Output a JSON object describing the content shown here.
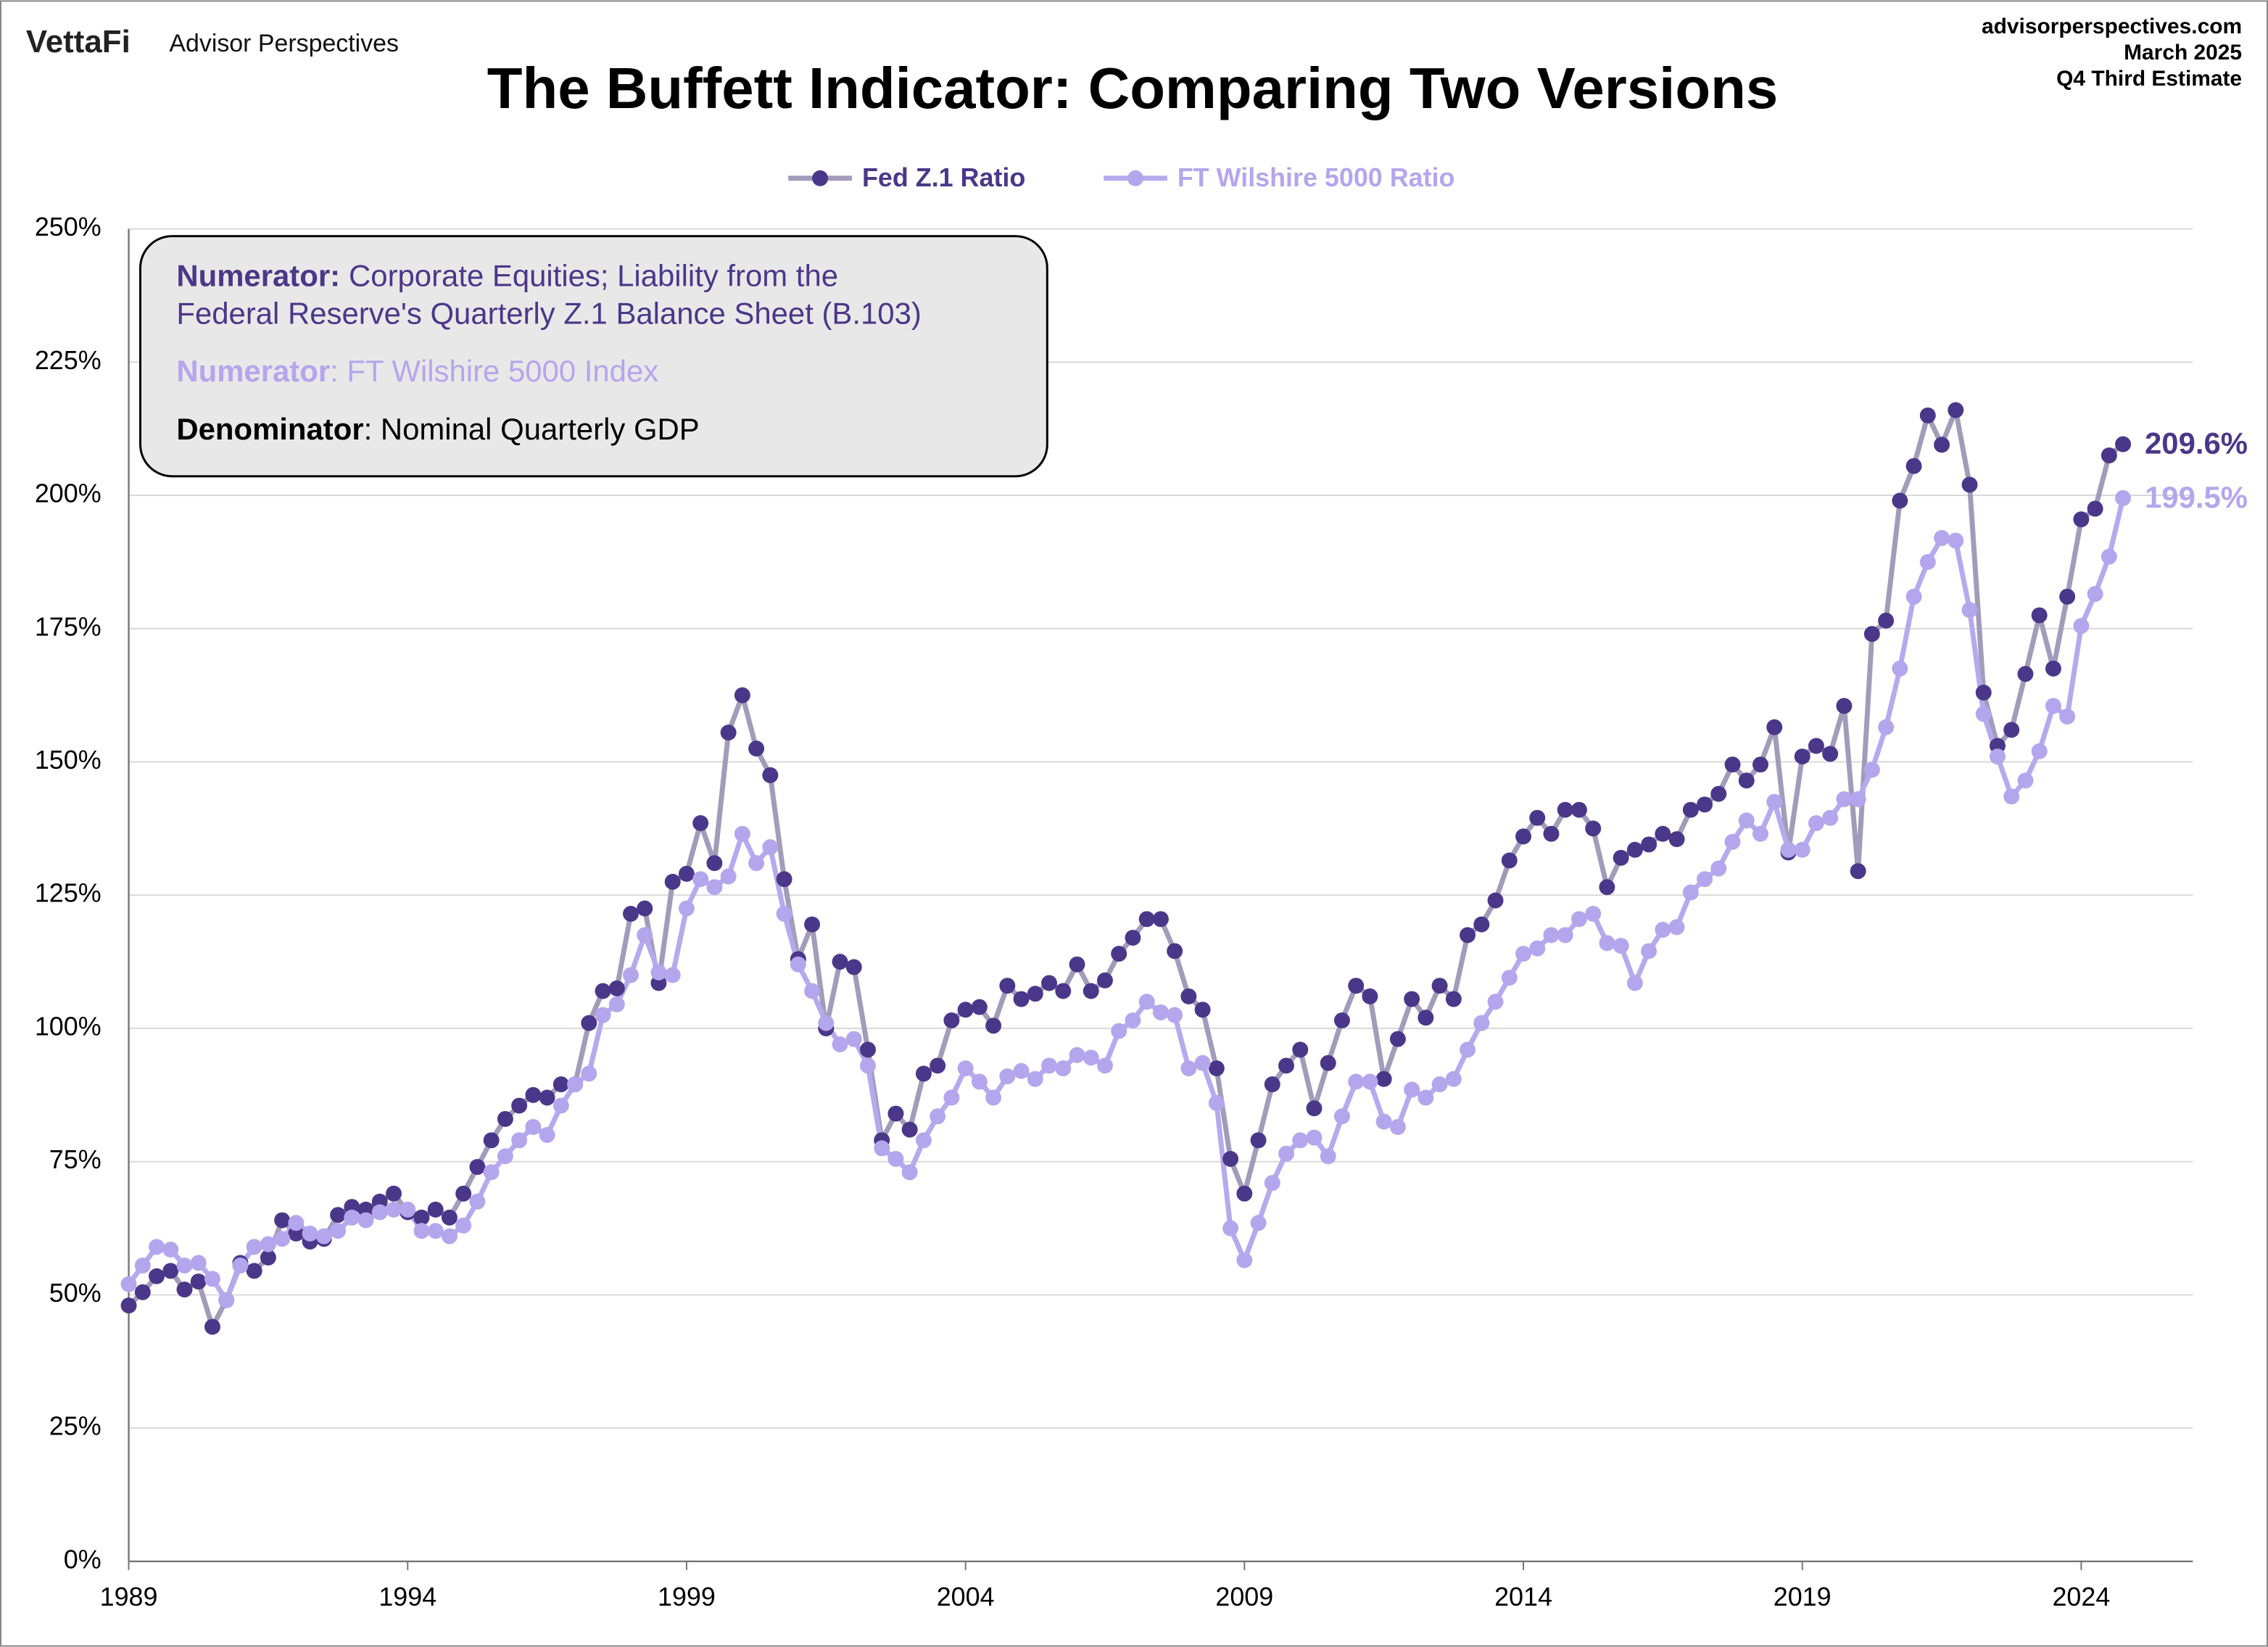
{
  "header": {
    "logo": "VettaFi",
    "brand": "Advisor Perspectives",
    "source": "advisorperspectives.com",
    "date": "March 2025",
    "estimate": "Q4 Third Estimate"
  },
  "chart_data": {
    "type": "line",
    "title": "The Buffett Indicator: Comparing Two Versions",
    "x": [
      1989,
      1989.25,
      1989.5,
      1989.75,
      1990,
      1990.25,
      1990.5,
      1990.75,
      1991,
      1991.25,
      1991.5,
      1991.75,
      1992,
      1992.25,
      1992.5,
      1992.75,
      1993,
      1993.25,
      1993.5,
      1993.75,
      1994,
      1994.25,
      1994.5,
      1994.75,
      1995,
      1995.25,
      1995.5,
      1995.75,
      1996,
      1996.25,
      1996.5,
      1996.75,
      1997,
      1997.25,
      1997.5,
      1997.75,
      1998,
      1998.25,
      1998.5,
      1998.75,
      1999,
      1999.25,
      1999.5,
      1999.75,
      2000,
      2000.25,
      2000.5,
      2000.75,
      2001,
      2001.25,
      2001.5,
      2001.75,
      2002,
      2002.25,
      2002.5,
      2002.75,
      2003,
      2003.25,
      2003.5,
      2003.75,
      2004,
      2004.25,
      2004.5,
      2004.75,
      2005,
      2005.25,
      2005.5,
      2005.75,
      2006,
      2006.25,
      2006.5,
      2006.75,
      2007,
      2007.25,
      2007.5,
      2007.75,
      2008,
      2008.25,
      2008.5,
      2008.75,
      2009,
      2009.25,
      2009.5,
      2009.75,
      2010,
      2010.25,
      2010.5,
      2010.75,
      2011,
      2011.25,
      2011.5,
      2011.75,
      2012,
      2012.25,
      2012.5,
      2012.75,
      2013,
      2013.25,
      2013.5,
      2013.75,
      2014,
      2014.25,
      2014.5,
      2014.75,
      2015,
      2015.25,
      2015.5,
      2015.75,
      2016,
      2016.25,
      2016.5,
      2016.75,
      2017,
      2017.25,
      2017.5,
      2017.75,
      2018,
      2018.25,
      2018.5,
      2018.75,
      2019,
      2019.25,
      2019.5,
      2019.75,
      2020,
      2020.25,
      2020.5,
      2020.75,
      2021,
      2021.25,
      2021.5,
      2021.75,
      2022,
      2022.25,
      2022.5,
      2022.75,
      2023,
      2023.25,
      2023.5,
      2023.75,
      2024,
      2024.25,
      2024.5,
      2024.75
    ],
    "series": [
      {
        "name": "Fed Z.1 Ratio",
        "color": "#4b3789",
        "line_color": "#a29cba",
        "value_label": "209.6%",
        "values": [
          48,
          50.5,
          53.5,
          54.5,
          51,
          52.5,
          44,
          49,
          56,
          54.5,
          57,
          64,
          61.5,
          60,
          60.5,
          65,
          66.5,
          66,
          67.5,
          69,
          65.5,
          64.5,
          66,
          64.5,
          69,
          74,
          79,
          83,
          85.5,
          87.5,
          87,
          89.5,
          89.5,
          101,
          107,
          107.5,
          121.5,
          122.5,
          108.5,
          127.5,
          129,
          138.5,
          131,
          155.5,
          162.5,
          152.5,
          147.5,
          128,
          113,
          119.5,
          100,
          112.5,
          111.5,
          96,
          79,
          84,
          81,
          91.5,
          93,
          101.5,
          103.5,
          104,
          100.5,
          108,
          105.5,
          106.5,
          108.5,
          107,
          112,
          107,
          109,
          114,
          117,
          120.5,
          120.5,
          114.5,
          106,
          103.5,
          92.5,
          75.5,
          69,
          79,
          89.5,
          93,
          96,
          85,
          93.5,
          101.5,
          108,
          106,
          90.5,
          98,
          105.5,
          102,
          108,
          105.5,
          117.5,
          119.5,
          124,
          131.5,
          136,
          139.5,
          136.5,
          141,
          141,
          137.5,
          126.5,
          132,
          133.5,
          134.5,
          136.5,
          135.5,
          141,
          142,
          144,
          149.5,
          146.5,
          149.5,
          156.5,
          133,
          151,
          153,
          151.5,
          160.5,
          129.5,
          174,
          176.5,
          199,
          205.5,
          215,
          209.5,
          216,
          202,
          163,
          153,
          156,
          166.5,
          177.5,
          167.5,
          181,
          195.5,
          197.5,
          207.5,
          209.6
        ]
      },
      {
        "name": "FT Wilshire 5000 Ratio",
        "color": "#b4a6ec",
        "line_color": "#b6aaee",
        "value_label": "199.5%",
        "values": [
          52,
          55.5,
          59,
          58.5,
          55.5,
          56,
          53,
          49,
          55.5,
          59,
          59.5,
          60.5,
          63.5,
          61.5,
          61,
          62,
          64.5,
          64,
          65.5,
          66,
          66,
          62,
          62,
          61,
          63,
          67.5,
          73,
          76,
          79,
          81.5,
          80,
          85.5,
          89.5,
          91.5,
          102.5,
          104.5,
          110,
          117.5,
          110.5,
          110,
          122.5,
          128,
          126.5,
          128.5,
          136.5,
          131,
          134,
          121.5,
          112,
          107,
          101,
          97,
          98,
          93,
          77.5,
          75.5,
          73,
          79,
          83.5,
          87,
          92.5,
          90,
          87,
          91,
          92,
          90.5,
          93,
          92.5,
          95,
          94.5,
          93,
          99.5,
          101.5,
          105,
          103,
          102.5,
          92.5,
          93.5,
          86,
          62.5,
          56.5,
          63.5,
          71,
          76.5,
          79,
          79.5,
          76,
          83.5,
          90,
          90,
          82.5,
          81.5,
          88.5,
          87,
          89.5,
          90.5,
          96,
          101,
          105,
          109.5,
          114,
          115,
          117.5,
          117.5,
          120.5,
          121.5,
          116,
          115.5,
          108.5,
          114.5,
          118.5,
          119,
          125.5,
          128,
          130,
          135,
          139,
          136.5,
          142.5,
          133.5,
          133.5,
          138.5,
          139.5,
          143,
          143,
          148.5,
          156.5,
          167.5,
          181,
          187.5,
          192,
          191.5,
          178.5,
          159,
          151,
          143.5,
          146.5,
          152,
          160.5,
          158.5,
          175.5,
          181.5,
          188.5,
          199.5
        ]
      }
    ],
    "xlim": [
      1989,
      2026
    ],
    "xticks": [
      1989,
      1994,
      1999,
      2004,
      2009,
      2014,
      2019,
      2024
    ],
    "ylim": [
      0,
      250
    ],
    "yticks": [
      {
        "value": 0,
        "label": "0%"
      },
      {
        "value": 25,
        "label": "25%"
      },
      {
        "value": 50,
        "label": "50%"
      },
      {
        "value": 75,
        "label": "75%"
      },
      {
        "value": 100,
        "label": "100%"
      },
      {
        "value": 125,
        "label": "125%"
      },
      {
        "value": 150,
        "label": "150%"
      },
      {
        "value": 175,
        "label": "175%"
      },
      {
        "value": 200,
        "label": "200%"
      },
      {
        "value": 225,
        "label": "225%"
      },
      {
        "value": 250,
        "label": "250%"
      }
    ],
    "grid": true,
    "legend": "top",
    "annotations": [
      {
        "label": "Numerator:",
        "text": [
          "Corporate Equities; Liability from the",
          "Federal Reserve's Quarterly Z.1 Balance Sheet (B.103)"
        ],
        "color": "#4b3789"
      },
      {
        "label": "Numerator",
        "text": [
          ": FT Wilshire 5000 Index"
        ],
        "color": "#b4a6ec"
      },
      {
        "label": "Denominator",
        "text": [
          ": Nominal Quarterly GDP"
        ],
        "color": "#000000"
      }
    ]
  }
}
